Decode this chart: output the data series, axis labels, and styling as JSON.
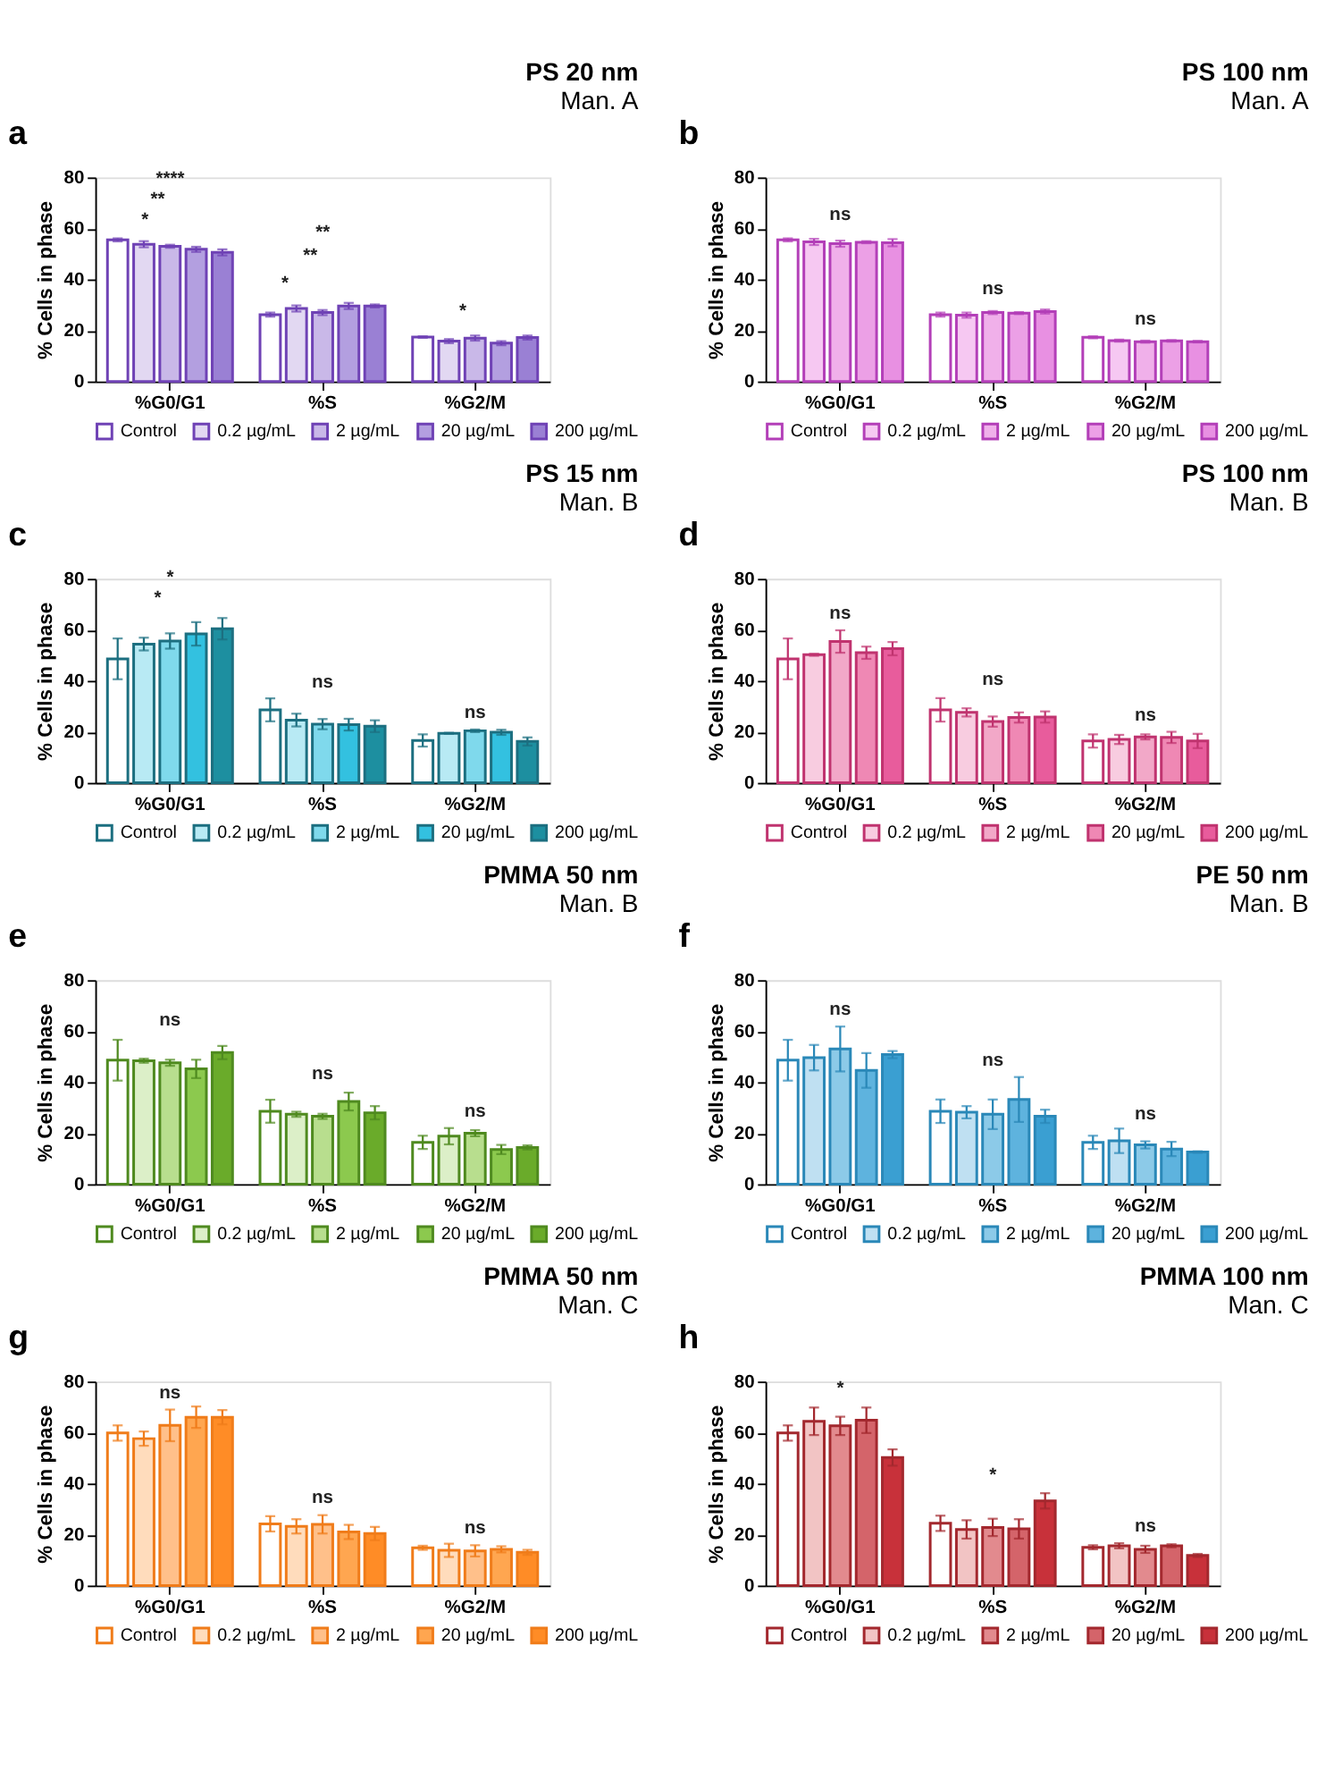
{
  "chart_data": [
    {
      "type": "bar",
      "title": "PS 20 nm",
      "subtitle": "Man. A",
      "ylabel": "% Cells in phase",
      "categories": [
        "%G0/G1",
        "%S",
        "%G2/M"
      ],
      "ylim": [
        0,
        80
      ],
      "yticks": [
        0,
        20,
        40,
        60,
        80
      ],
      "grid": false,
      "legend": "bottom",
      "series": [
        {
          "name": "Control",
          "color": "#6f42b5",
          "values": [
            55.5,
            26.2,
            17.4
          ],
          "errors": [
            0.6,
            0.8,
            0.3
          ]
        },
        {
          "name": "0.2 µg/mL",
          "color": "#e2d8f2",
          "values": [
            53.8,
            28.6,
            15.8
          ],
          "errors": [
            1.2,
            1.2,
            0.8
          ]
        },
        {
          "name": "2 µg/mL",
          "color": "#c9b8e8",
          "values": [
            53.0,
            27.0,
            17.0
          ],
          "errors": [
            0.6,
            1.0,
            1.0
          ]
        },
        {
          "name": "20 µg/mL",
          "color": "#b39fe0",
          "values": [
            51.8,
            29.6,
            15.0
          ],
          "errors": [
            1.0,
            1.2,
            0.8
          ]
        },
        {
          "name": "200 µg/mL",
          "color": "#9a80d4",
          "values": [
            50.6,
            29.6,
            17.2
          ],
          "errors": [
            1.2,
            0.6,
            0.8
          ]
        }
      ],
      "annotations": [
        "a",
        "*",
        "**",
        "****",
        "*",
        "**",
        "**",
        "*"
      ]
    },
    {
      "type": "bar",
      "title": "PS 100 nm",
      "subtitle": "Man. A",
      "ylabel": "% Cells in phase",
      "categories": [
        "%G0/G1",
        "%S",
        "%G2/M"
      ],
      "ylim": [
        0,
        80
      ],
      "yticks": [
        0,
        20,
        40,
        60,
        80
      ],
      "grid": false,
      "legend": "bottom",
      "series": [
        {
          "name": "Control",
          "color": "#b33fb8",
          "values": [
            55.5,
            26.2,
            17.3
          ],
          "errors": [
            0.6,
            0.8,
            0.4
          ]
        },
        {
          "name": "0.2 µg/mL",
          "color": "#f6c8f2",
          "values": [
            54.7,
            26.0,
            16.0
          ],
          "errors": [
            1.2,
            1.0,
            0.4
          ]
        },
        {
          "name": "2 µg/mL",
          "color": "#f0b0ea",
          "values": [
            54.0,
            27.0,
            15.6
          ],
          "errors": [
            1.2,
            0.6,
            0.4
          ]
        },
        {
          "name": "20 µg/mL",
          "color": "#eca0e6",
          "values": [
            54.6,
            26.8,
            15.9
          ],
          "errors": [
            0.4,
            0.4,
            0.3
          ]
        },
        {
          "name": "200 µg/mL",
          "color": "#e890e2",
          "values": [
            54.4,
            27.4,
            15.6
          ],
          "errors": [
            1.4,
            0.8,
            0.3
          ]
        }
      ],
      "annotations": [
        "b",
        "ns",
        "ns",
        "ns"
      ]
    },
    {
      "type": "bar",
      "title": "PS 15 nm",
      "subtitle": "Man. B",
      "ylabel": "% Cells in phase",
      "categories": [
        "%G0/G1",
        "%S",
        "%G2/M"
      ],
      "ylim": [
        0,
        80
      ],
      "yticks": [
        0,
        20,
        40,
        60,
        80
      ],
      "grid": false,
      "legend": "bottom",
      "series": [
        {
          "name": "Control",
          "color": "#1c6f80",
          "values": [
            48.6,
            28.6,
            16.6
          ],
          "errors": [
            8,
            4.5,
            2.4
          ]
        },
        {
          "name": "0.2 µg/mL",
          "color": "#b8eaf4",
          "values": [
            54.4,
            24.6,
            19.4
          ],
          "errors": [
            2.5,
            2.5,
            0.2
          ]
        },
        {
          "name": "2 µg/mL",
          "color": "#7fd9ec",
          "values": [
            55.6,
            23.0,
            20.4
          ],
          "errors": [
            3,
            2,
            0.5
          ]
        },
        {
          "name": "20 µg/mL",
          "color": "#33c1e0",
          "values": [
            58.4,
            22.8,
            19.8
          ],
          "errors": [
            4.6,
            2.3,
            1
          ]
        },
        {
          "name": "200 µg/mL",
          "color": "#1d8fa0",
          "values": [
            60.4,
            22.2,
            16.2
          ],
          "errors": [
            4.2,
            2.3,
            1.6
          ]
        }
      ],
      "annotations": [
        "c",
        "*",
        "*",
        "ns",
        "ns"
      ]
    },
    {
      "type": "bar",
      "title": "PS 100 nm",
      "subtitle": "Man. B",
      "ylabel": "% Cells in phase",
      "categories": [
        "%G0/G1",
        "%S",
        "%G2/M"
      ],
      "ylim": [
        0,
        80
      ],
      "yticks": [
        0,
        20,
        40,
        60,
        80
      ],
      "grid": false,
      "legend": "bottom",
      "series": [
        {
          "name": "Control",
          "color": "#c0336f",
          "values": [
            48.6,
            28.6,
            16.4
          ],
          "errors": [
            8,
            4.6,
            2.6
          ]
        },
        {
          "name": "0.2 µg/mL",
          "color": "#f8cce0",
          "values": [
            50.2,
            27.6,
            17.0
          ],
          "errors": [
            0.4,
            1.6,
            1.8
          ]
        },
        {
          "name": "2 µg/mL",
          "color": "#f2a8c8",
          "values": [
            55.4,
            24.0,
            18.0
          ],
          "errors": [
            4.4,
            2,
            1
          ]
        },
        {
          "name": "20 µg/mL",
          "color": "#ef88b4",
          "values": [
            51.0,
            25.6,
            17.8
          ],
          "errors": [
            2.4,
            2,
            2.2
          ]
        },
        {
          "name": "200 µg/mL",
          "color": "#e85c9c",
          "values": [
            52.6,
            25.8,
            16.4
          ],
          "errors": [
            2.6,
            2.2,
            2.8
          ]
        }
      ],
      "annotations": [
        "d",
        "ns",
        "ns",
        "ns"
      ]
    },
    {
      "type": "bar",
      "title": "PMMA 50 nm",
      "subtitle": "Man. B",
      "ylabel": "% Cells in phase",
      "categories": [
        "%G0/G1",
        "%S",
        "%G2/M"
      ],
      "ylim": [
        0,
        80
      ],
      "yticks": [
        0,
        20,
        40,
        60,
        80
      ],
      "grid": false,
      "legend": "bottom",
      "series": [
        {
          "name": "Control",
          "color": "#4f8a1f",
          "values": [
            48.6,
            28.6,
            16.4
          ],
          "errors": [
            8,
            4.5,
            2.6
          ]
        },
        {
          "name": "0.2 µg/mL",
          "color": "#dcefc8",
          "values": [
            48.4,
            27.4,
            18.8
          ],
          "errors": [
            0.8,
            1,
            3.2
          ]
        },
        {
          "name": "2 µg/mL",
          "color": "#b8de8e",
          "values": [
            47.6,
            26.6,
            20.0
          ],
          "errors": [
            1.2,
            1,
            1.2
          ]
        },
        {
          "name": "20 µg/mL",
          "color": "#8cc94e",
          "values": [
            45.2,
            32.4,
            13.6
          ],
          "errors": [
            3.6,
            3.5,
            1.8
          ]
        },
        {
          "name": "200 µg/mL",
          "color": "#6aab2a",
          "values": [
            51.6,
            28.0,
            14.4
          ],
          "errors": [
            2.6,
            2.6,
            0.8
          ]
        }
      ],
      "annotations": [
        "e",
        "ns",
        "ns",
        "ns"
      ]
    },
    {
      "type": "bar",
      "title": "PE 50 nm",
      "subtitle": "Man. B",
      "ylabel": "% Cells in phase",
      "categories": [
        "%G0/G1",
        "%S",
        "%G2/M"
      ],
      "ylim": [
        0,
        80
      ],
      "yticks": [
        0,
        20,
        40,
        60,
        80
      ],
      "grid": false,
      "legend": "bottom",
      "series": [
        {
          "name": "Control",
          "color": "#2a88b8",
          "values": [
            48.6,
            28.6,
            16.4
          ],
          "errors": [
            8,
            4.6,
            2.6
          ]
        },
        {
          "name": "0.2 µg/mL",
          "color": "#bfe0f2",
          "values": [
            49.6,
            28.2,
            17.0
          ],
          "errors": [
            5,
            2.4,
            4.8
          ]
        },
        {
          "name": "2 µg/mL",
          "color": "#8ccae8",
          "values": [
            53.0,
            27.4,
            15.4
          ],
          "errors": [
            8.8,
            5.8,
            1.4
          ]
        },
        {
          "name": "20 µg/mL",
          "color": "#5eb3de",
          "values": [
            44.6,
            33.2,
            13.8
          ],
          "errors": [
            6.8,
            8.8,
            2.8
          ]
        },
        {
          "name": "200 µg/mL",
          "color": "#3a9fd2",
          "values": [
            50.8,
            26.6,
            12.6
          ],
          "errors": [
            1.4,
            2.6,
            0.3
          ]
        }
      ],
      "annotations": [
        "f",
        "ns",
        "ns",
        "ns"
      ]
    },
    {
      "type": "bar",
      "title": "PMMA 50 nm",
      "subtitle": "Man. C",
      "ylabel": "% Cells in phase",
      "categories": [
        "%G0/G1",
        "%S",
        "%G2/M"
      ],
      "ylim": [
        0,
        80
      ],
      "yticks": [
        0,
        20,
        40,
        60,
        80
      ],
      "grid": false,
      "legend": "bottom",
      "series": [
        {
          "name": "Control",
          "color": "#f07c1a",
          "values": [
            59.8,
            24.2,
            14.8
          ],
          "errors": [
            3,
            3,
            0.8
          ]
        },
        {
          "name": "0.2 µg/mL",
          "color": "#ffdcbc",
          "values": [
            57.6,
            23.2,
            13.8
          ],
          "errors": [
            2.8,
            2.8,
            2.6
          ]
        },
        {
          "name": "2 µg/mL",
          "color": "#ffc08a",
          "values": [
            62.8,
            24.0,
            13.6
          ],
          "errors": [
            6.2,
            3.6,
            2.2
          ]
        },
        {
          "name": "20 µg/mL",
          "color": "#ffa650",
          "values": [
            66.0,
            21.0,
            14.2
          ],
          "errors": [
            4.2,
            2.8,
            1.2
          ]
        },
        {
          "name": "200 µg/mL",
          "color": "#ff8c26",
          "values": [
            66.0,
            20.4,
            13.0
          ],
          "errors": [
            2.8,
            2.6,
            1
          ]
        }
      ],
      "annotations": [
        "g",
        "ns",
        "ns",
        "ns"
      ]
    },
    {
      "type": "bar",
      "title": "PMMA 100 nm",
      "subtitle": "Man. C",
      "ylabel": "% Cells in phase",
      "categories": [
        "%G0/G1",
        "%S",
        "%G2/M"
      ],
      "ylim": [
        0,
        80
      ],
      "yticks": [
        0,
        20,
        40,
        60,
        80
      ],
      "grid": false,
      "legend": "bottom",
      "series": [
        {
          "name": "Control",
          "color": "#a3282e",
          "values": [
            59.8,
            24.4,
            15.0
          ],
          "errors": [
            3,
            3,
            0.8
          ]
        },
        {
          "name": "0.2 µg/mL",
          "color": "#f2c4c4",
          "values": [
            64.4,
            22.0,
            15.6
          ],
          "errors": [
            5.4,
            3.6,
            1
          ]
        },
        {
          "name": "2 µg/mL",
          "color": "#e28a8e",
          "values": [
            62.6,
            22.8,
            14.2
          ],
          "errors": [
            3.6,
            3.4,
            1.4
          ]
        },
        {
          "name": "20 µg/mL",
          "color": "#d4646a",
          "values": [
            64.8,
            22.2,
            15.6
          ],
          "errors": [
            5,
            3.8,
            0.6
          ]
        },
        {
          "name": "200 µg/mL",
          "color": "#c8313a",
          "values": [
            50.2,
            33.2,
            11.8
          ],
          "errors": [
            3.2,
            3,
            0.6
          ]
        }
      ],
      "annotations": [
        "h",
        "*",
        "*",
        "ns"
      ]
    }
  ]
}
